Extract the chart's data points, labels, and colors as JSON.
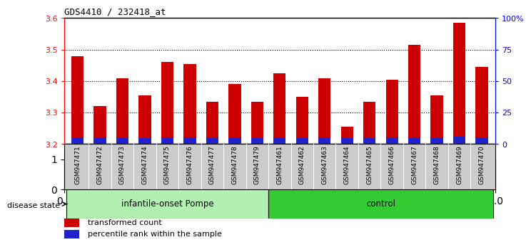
{
  "title": "GDS4410 / 232418_at",
  "samples": [
    "GSM947471",
    "GSM947472",
    "GSM947473",
    "GSM947474",
    "GSM947475",
    "GSM947476",
    "GSM947477",
    "GSM947478",
    "GSM947479",
    "GSM947461",
    "GSM947462",
    "GSM947463",
    "GSM947464",
    "GSM947465",
    "GSM947466",
    "GSM947467",
    "GSM947468",
    "GSM947469",
    "GSM947470"
  ],
  "red_values": [
    3.48,
    3.32,
    3.41,
    3.355,
    3.46,
    3.455,
    3.335,
    3.39,
    3.335,
    3.425,
    3.35,
    3.41,
    3.255,
    3.335,
    3.405,
    3.515,
    3.355,
    3.585,
    3.445
  ],
  "blue_heights": [
    0.022,
    0.02,
    0.022,
    0.02,
    0.022,
    0.022,
    0.02,
    0.021,
    0.02,
    0.021,
    0.02,
    0.021,
    0.019,
    0.02,
    0.021,
    0.022,
    0.02,
    0.023,
    0.021
  ],
  "base": 3.2,
  "ylim_left": [
    3.2,
    3.6
  ],
  "yticks_left": [
    3.2,
    3.3,
    3.4,
    3.5,
    3.6
  ],
  "ylim_right": [
    0,
    100
  ],
  "yticks_right": [
    0,
    25,
    50,
    75,
    100
  ],
  "yticklabels_right": [
    "0",
    "25",
    "50",
    "75",
    "100%"
  ],
  "group1_label": "infantile-onset Pompe",
  "group2_label": "control",
  "n_group1": 9,
  "n_group2": 10,
  "bar_color_red": "#cc0000",
  "bar_color_blue": "#2222cc",
  "bg_color": "#ffffff",
  "group1_bg": "#b2f0b2",
  "group2_bg": "#33cc33",
  "sample_bg": "#cccccc",
  "disease_state_label": "disease state",
  "legend1": "transformed count",
  "legend2": "percentile rank within the sample",
  "bar_width": 0.55
}
